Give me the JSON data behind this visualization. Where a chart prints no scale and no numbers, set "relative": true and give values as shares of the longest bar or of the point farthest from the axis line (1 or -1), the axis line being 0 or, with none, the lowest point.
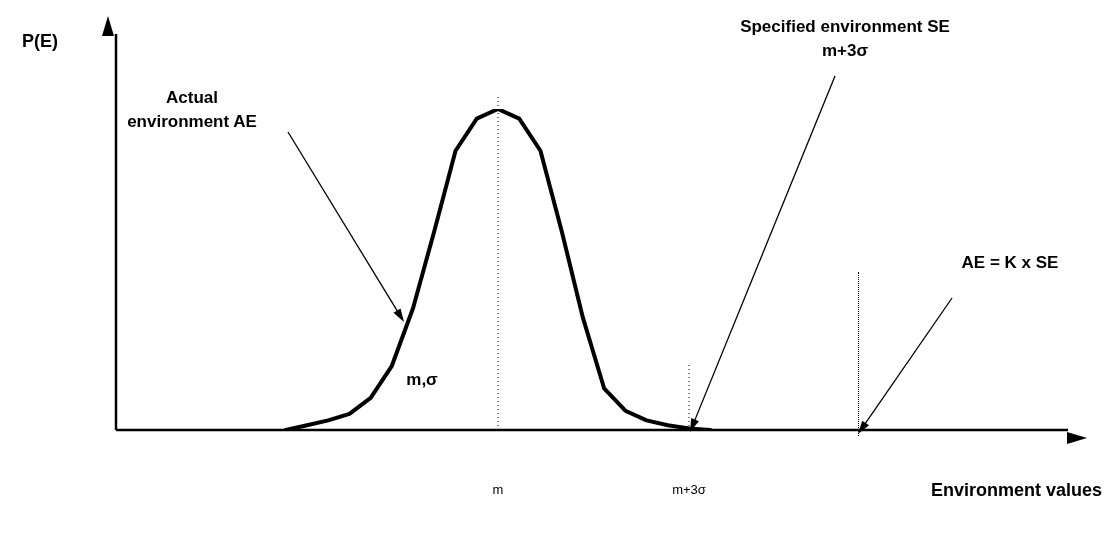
{
  "chart_data": {
    "type": "line",
    "relative": true,
    "ylabel": "P(E)",
    "xlabel": "Environment values",
    "categories": [
      null,
      null,
      null,
      null,
      null,
      null,
      null,
      null,
      null,
      null,
      null,
      null,
      null,
      null,
      null,
      null,
      null,
      null,
      "m",
      null,
      null,
      null,
      null,
      null,
      null,
      null,
      null,
      "m+3σ",
      null,
      null,
      null,
      null,
      null,
      null,
      null,
      null,
      null,
      null,
      null,
      null,
      null,
      null,
      null,
      null,
      null,
      null
    ],
    "series": [
      {
        "color": "#000000",
        "values": [
          null,
          null,
          null,
          null,
          null,
          null,
          null,
          null,
          0,
          0.015,
          0.03,
          0.05,
          0.1,
          0.2,
          0.38,
          0.62,
          0.87,
          0.97,
          1,
          0.97,
          0.87,
          0.62,
          0.35,
          0.13,
          0.06,
          0.03,
          0.015,
          0.005,
          0,
          null,
          null,
          null,
          null,
          null,
          null,
          null,
          null,
          null,
          null,
          null,
          null,
          null,
          null,
          null,
          null,
          null
        ]
      }
    ],
    "marker": "none",
    "line_style": "solid",
    "grid": false,
    "legend": false,
    "ref_lines": [
      {
        "axis": "x",
        "value": "m",
        "line_style": "dotted",
        "color": "#000000"
      },
      {
        "axis": "x",
        "value": "m+3σ",
        "line_style": "dotted",
        "color": "#000000"
      }
    ],
    "annotations": [
      "Actual environment AE",
      "Specified environment SE m+3σ",
      "AE = K x SE",
      "m,σ"
    ]
  }
}
